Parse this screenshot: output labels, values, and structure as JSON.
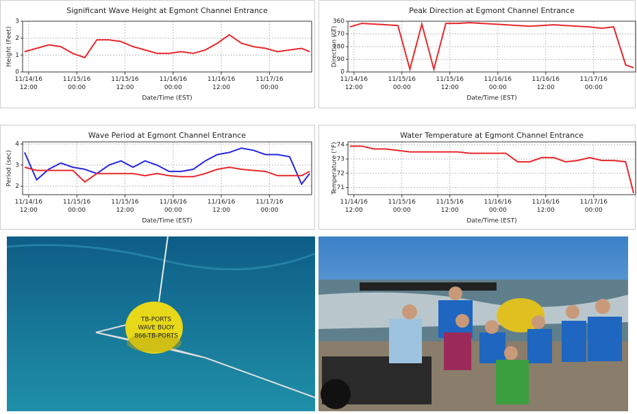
{
  "chart_data": [
    {
      "type": "line",
      "title": "Significant Wave Height at Egmont Channel Entrance",
      "x_label": "Date/Time (EST)",
      "y_label": "Height (Feet)",
      "x": [
        "2016-11-14T11:00",
        "2016-11-14T14:00",
        "2016-11-14T17:00",
        "2016-11-14T20:00",
        "2016-11-14T23:00",
        "2016-11-15T02:00",
        "2016-11-15T05:00",
        "2016-11-15T08:00",
        "2016-11-15T11:00",
        "2016-11-15T14:00",
        "2016-11-15T17:00",
        "2016-11-15T20:00",
        "2016-11-15T23:00",
        "2016-11-16T02:00",
        "2016-11-16T05:00",
        "2016-11-16T08:00",
        "2016-11-16T11:00",
        "2016-11-16T14:00",
        "2016-11-16T17:00",
        "2016-11-16T20:00",
        "2016-11-16T23:00",
        "2016-11-17T02:00",
        "2016-11-17T05:00",
        "2016-11-17T08:00",
        "2016-11-17T10:00"
      ],
      "series": [
        {
          "color": "#e8262a",
          "values": [
            1.2,
            1.4,
            1.6,
            1.5,
            1.1,
            0.85,
            1.9,
            1.9,
            1.8,
            1.5,
            1.3,
            1.1,
            1.1,
            1.2,
            1.1,
            1.3,
            1.7,
            2.2,
            1.7,
            1.5,
            1.4,
            1.2,
            1.3,
            1.4,
            1.2
          ]
        }
      ],
      "xlim": [
        "2016-11-14T10:30",
        "2016-11-17T10:30"
      ],
      "xticks": [
        {
          "value": "2016-11-14T12:00",
          "label": "11/14/16 12:00"
        },
        {
          "value": "2016-11-15T00:00",
          "label": "11/15/16 00:00"
        },
        {
          "value": "2016-11-15T12:00",
          "label": "11/15/16 12:00"
        },
        {
          "value": "2016-11-16T00:00",
          "label": "11/16/16 00:00"
        },
        {
          "value": "2016-11-16T12:00",
          "label": "11/16/16 12:00"
        },
        {
          "value": "2016-11-17T00:00",
          "label": "11/17/16 00:00"
        }
      ],
      "ylim": [
        0,
        3
      ],
      "yticks": [
        0,
        1,
        2,
        3
      ],
      "grid": true
    },
    {
      "type": "line",
      "title": "Peak Direction at Egmont Channel Entrance",
      "x_label": "Date/Time (EST)",
      "y_label": "Direction (°T)",
      "x": [
        "2016-11-14T11:00",
        "2016-11-14T14:00",
        "2016-11-14T17:00",
        "2016-11-14T20:00",
        "2016-11-14T23:00",
        "2016-11-15T02:00",
        "2016-11-15T05:00",
        "2016-11-15T08:00",
        "2016-11-15T11:00",
        "2016-11-15T14:00",
        "2016-11-15T17:00",
        "2016-11-15T20:00",
        "2016-11-15T23:00",
        "2016-11-16T02:00",
        "2016-11-16T05:00",
        "2016-11-16T08:00",
        "2016-11-16T11:00",
        "2016-11-16T14:00",
        "2016-11-16T17:00",
        "2016-11-16T20:00",
        "2016-11-16T23:00",
        "2016-11-17T02:00",
        "2016-11-17T05:00",
        "2016-11-17T08:00",
        "2016-11-17T10:00"
      ],
      "series": [
        {
          "color": "#e8262a",
          "values": [
            320,
            345,
            340,
            335,
            330,
            20,
            340,
            20,
            345,
            345,
            350,
            345,
            340,
            335,
            330,
            325,
            330,
            335,
            330,
            325,
            320,
            310,
            320,
            50,
            30
          ]
        }
      ],
      "xlim": [
        "2016-11-14T10:30",
        "2016-11-17T10:30"
      ],
      "xticks": [
        {
          "value": "2016-11-14T12:00",
          "label": "11/14/16 12:00"
        },
        {
          "value": "2016-11-15T00:00",
          "label": "11/15/16 00:00"
        },
        {
          "value": "2016-11-15T12:00",
          "label": "11/15/16 12:00"
        },
        {
          "value": "2016-11-16T00:00",
          "label": "11/16/16 00:00"
        },
        {
          "value": "2016-11-16T12:00",
          "label": "11/16/16 12:00"
        },
        {
          "value": "2016-11-17T00:00",
          "label": "11/17/16 00:00"
        }
      ],
      "ylim": [
        0,
        360
      ],
      "yticks": [
        0,
        90,
        180,
        270,
        360
      ],
      "grid": true
    },
    {
      "type": "line",
      "title": "Wave Period at Egmont Channel Entrance",
      "x_label": "Date/Time (EST)",
      "y_label": "Period (sec)",
      "x": [
        "2016-11-14T11:00",
        "2016-11-14T14:00",
        "2016-11-14T17:00",
        "2016-11-14T20:00",
        "2016-11-14T23:00",
        "2016-11-15T02:00",
        "2016-11-15T05:00",
        "2016-11-15T08:00",
        "2016-11-15T11:00",
        "2016-11-15T14:00",
        "2016-11-15T17:00",
        "2016-11-15T20:00",
        "2016-11-15T23:00",
        "2016-11-16T02:00",
        "2016-11-16T05:00",
        "2016-11-16T08:00",
        "2016-11-16T11:00",
        "2016-11-16T14:00",
        "2016-11-16T17:00",
        "2016-11-16T20:00",
        "2016-11-16T23:00",
        "2016-11-17T02:00",
        "2016-11-17T05:00",
        "2016-11-17T08:00",
        "2016-11-17T10:00"
      ],
      "series": [
        {
          "color": "#2424e0",
          "values": [
            3.6,
            2.3,
            2.8,
            3.1,
            2.9,
            2.8,
            2.6,
            3.0,
            3.2,
            2.9,
            3.2,
            3.0,
            2.7,
            2.7,
            2.8,
            3.2,
            3.5,
            3.6,
            3.8,
            3.7,
            3.5,
            3.5,
            3.4,
            2.1,
            2.6
          ]
        },
        {
          "color": "#e8262a",
          "values": [
            2.9,
            2.75,
            2.75,
            2.75,
            2.75,
            2.2,
            2.6,
            2.6,
            2.6,
            2.6,
            2.5,
            2.6,
            2.5,
            2.45,
            2.45,
            2.6,
            2.8,
            2.9,
            2.8,
            2.75,
            2.7,
            2.5,
            2.5,
            2.5,
            2.7
          ]
        }
      ],
      "xlim": [
        "2016-11-14T10:30",
        "2016-11-17T10:30"
      ],
      "xticks": [
        {
          "value": "2016-11-14T12:00",
          "label": "11/14/16 12:00"
        },
        {
          "value": "2016-11-15T00:00",
          "label": "11/15/16 00:00"
        },
        {
          "value": "2016-11-15T12:00",
          "label": "11/15/16 12:00"
        },
        {
          "value": "2016-11-16T00:00",
          "label": "11/16/16 00:00"
        },
        {
          "value": "2016-11-16T12:00",
          "label": "11/16/16 12:00"
        },
        {
          "value": "2016-11-17T00:00",
          "label": "11/17/16 00:00"
        }
      ],
      "ylim": [
        1.6,
        4.1
      ],
      "yticks": [
        2,
        3,
        4
      ],
      "grid": true
    },
    {
      "type": "line",
      "title": "Water Temperature at Egmont Channel Entrance",
      "x_label": "Date/Time (EST)",
      "y_label": "Temperature (°F)",
      "x": [
        "2016-11-14T11:00",
        "2016-11-14T14:00",
        "2016-11-14T17:00",
        "2016-11-14T20:00",
        "2016-11-14T23:00",
        "2016-11-15T02:00",
        "2016-11-15T05:00",
        "2016-11-15T08:00",
        "2016-11-15T11:00",
        "2016-11-15T14:00",
        "2016-11-15T17:00",
        "2016-11-15T20:00",
        "2016-11-15T23:00",
        "2016-11-16T02:00",
        "2016-11-16T05:00",
        "2016-11-16T08:00",
        "2016-11-16T11:00",
        "2016-11-16T14:00",
        "2016-11-16T17:00",
        "2016-11-16T20:00",
        "2016-11-16T23:00",
        "2016-11-17T02:00",
        "2016-11-17T05:00",
        "2016-11-17T08:00",
        "2016-11-17T10:00"
      ],
      "series": [
        {
          "color": "#e8262a",
          "values": [
            73.9,
            73.9,
            73.7,
            73.7,
            73.6,
            73.5,
            73.5,
            73.5,
            73.5,
            73.5,
            73.4,
            73.4,
            73.4,
            73.4,
            72.8,
            72.8,
            73.1,
            73.1,
            72.8,
            72.9,
            73.1,
            72.9,
            72.9,
            72.8,
            70.6
          ]
        }
      ],
      "xlim": [
        "2016-11-14T10:30",
        "2016-11-17T10:30"
      ],
      "xticks": [
        {
          "value": "2016-11-14T12:00",
          "label": "11/14/16 12:00"
        },
        {
          "value": "2016-11-15T00:00",
          "label": "11/15/16 00:00"
        },
        {
          "value": "2016-11-15T12:00",
          "label": "11/15/16 12:00"
        },
        {
          "value": "2016-11-16T00:00",
          "label": "11/16/16 00:00"
        },
        {
          "value": "2016-11-16T12:00",
          "label": "11/16/16 12:00"
        },
        {
          "value": "2016-11-17T00:00",
          "label": "11/17/16 00:00"
        }
      ],
      "ylim": [
        70.5,
        74.2
      ],
      "yticks": [
        71,
        72,
        73,
        74
      ],
      "grid": true
    }
  ],
  "photos": {
    "buoy_text": [
      "TB-PORTS",
      "WAVE BUOY",
      "866-TB-PORTS"
    ]
  }
}
